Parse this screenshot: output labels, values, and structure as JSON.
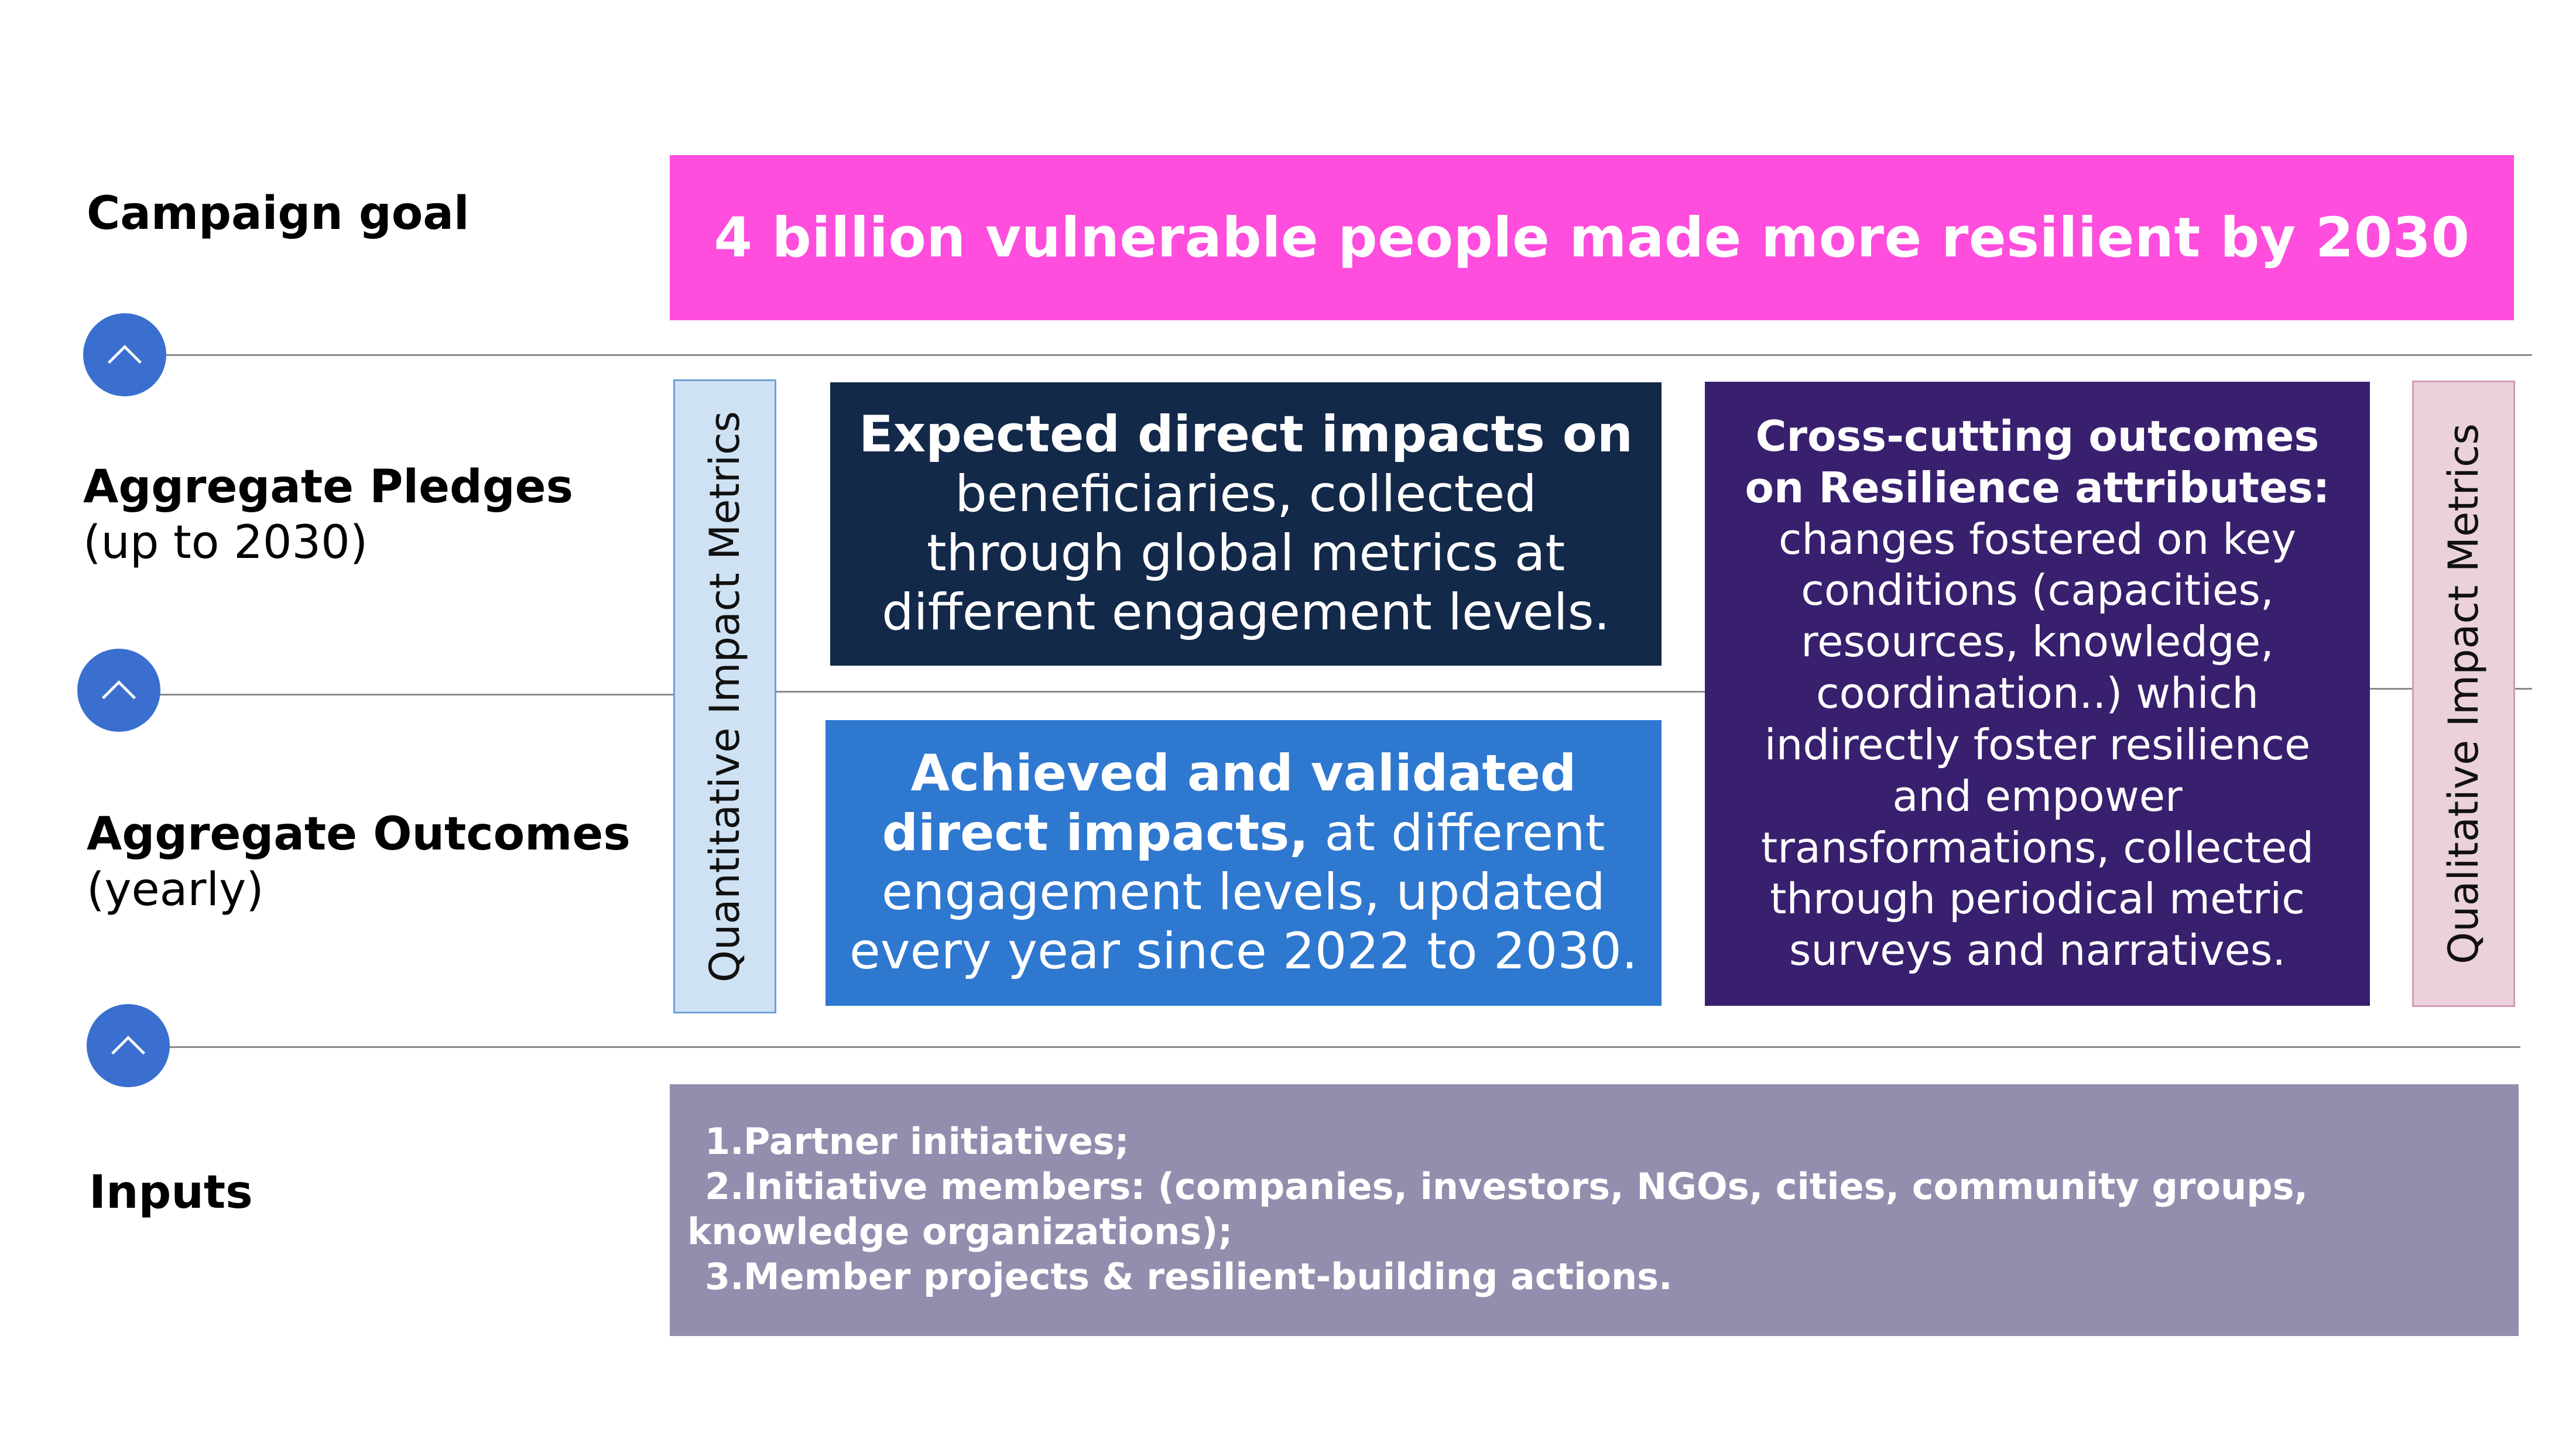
{
  "rows": {
    "campaign_goal": "Campaign goal",
    "pledges_title": "Aggregate Pledges",
    "pledges_sub": "(up to 2030)",
    "outcomes_title": "Aggregate Outcomes",
    "outcomes_sub": "(yearly)",
    "inputs": "Inputs"
  },
  "goal": {
    "text": "4 billion vulnerable people made more resilient by 2030"
  },
  "side_labels": {
    "quantitative": "Quantitative Impact Metrics",
    "qualitative": "Qualitative Impact Metrics"
  },
  "boxes": {
    "expected": {
      "bold": "Expected direct impacts on",
      "text": "beneficiaries, collected through global metrics at different engagement levels."
    },
    "achieved": {
      "bold": "Achieved and validated direct impacts,",
      "text": "at different engagement levels, updated every year since 2022 to 2030."
    },
    "crosscutting": {
      "bold": "Cross-cutting outcomes on Resilience attributes:",
      "text": "changes fostered on key conditions (capacities, resources, knowledge, coordination..) which indirectly foster resilience and empower transformations,  collected through periodical metric surveys and narratives."
    }
  },
  "inputs_list": [
    {
      "num": "1.",
      "text": "Partner initiatives;"
    },
    {
      "num": "2.",
      "text": "Initiative members: (companies, investors, NGOs, cities, community groups, knowledge organizations);"
    },
    {
      "num": "3.",
      "text": "Member projects & resilient-building actions."
    }
  ],
  "icons": [
    "chevron-up-icon",
    "chevron-up-icon",
    "chevron-up-icon"
  ],
  "colors": {
    "goal": "#ff4ddd",
    "expected": "#13294a",
    "achieved": "#2e78d0",
    "crosscutting": "#38206f",
    "inputs": "#938eae",
    "quantitative_bg": "#cfe2f3",
    "qualitative_bg": "#ead1dc",
    "button": "#3a6fcf"
  }
}
